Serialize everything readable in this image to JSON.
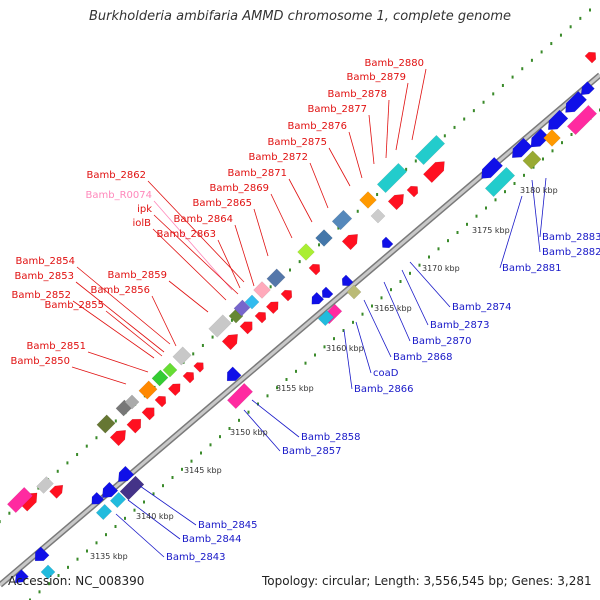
{
  "title": "Burkholderia ambifaria AMMD chromosome 1, complete genome",
  "accession": "Accession: NC_008390",
  "summary": "Topology: circular; Length: 3,556,545 bp; Genes: 3,281",
  "colors": {
    "backbone": "#9a9a9a",
    "tick_dot": "#3a8a2a",
    "upper_label": "#e01010",
    "upper_label_pink": "#ff88bb",
    "lower_label": "#1818c8",
    "forward_gene": "#ff1020",
    "reverse_gene": "#1010e8"
  },
  "scale_ticks": [
    {
      "label": "3135 kbp"
    },
    {
      "label": "3140 kbp"
    },
    {
      "label": "3145 kbp"
    },
    {
      "label": "3150 kbp"
    },
    {
      "label": "3155 kbp"
    },
    {
      "label": "3160 kbp"
    },
    {
      "label": "3165 kbp"
    },
    {
      "label": "3170 kbp"
    },
    {
      "label": "3175 kbp"
    },
    {
      "label": "3180 kbp"
    }
  ],
  "upper_labels": [
    {
      "text": "Bamb_2880"
    },
    {
      "text": "Bamb_2879"
    },
    {
      "text": "Bamb_2878"
    },
    {
      "text": "Bamb_2877"
    },
    {
      "text": "Bamb_2876"
    },
    {
      "text": "Bamb_2875"
    },
    {
      "text": "Bamb_2872"
    },
    {
      "text": "Bamb_2871"
    },
    {
      "text": "Bamb_2869"
    },
    {
      "text": "Bamb_2865"
    },
    {
      "text": "Bamb_2862"
    },
    {
      "text": "Bamb_R0074"
    },
    {
      "text": "ipk"
    },
    {
      "text": "Bamb_2864"
    },
    {
      "text": "iolB"
    },
    {
      "text": "Bamb_2863"
    },
    {
      "text": "Bamb_2859"
    },
    {
      "text": "Bamb_2854"
    },
    {
      "text": "Bamb_2853"
    },
    {
      "text": "Bamb_2856"
    },
    {
      "text": "Bamb_2852"
    },
    {
      "text": "Bamb_2855"
    },
    {
      "text": "Bamb_2851"
    },
    {
      "text": "Bamb_2850"
    }
  ],
  "lower_labels": [
    {
      "text": "Bamb_2883"
    },
    {
      "text": "Bamb_2882"
    },
    {
      "text": "Bamb_2881"
    },
    {
      "text": "Bamb_2874"
    },
    {
      "text": "Bamb_2873"
    },
    {
      "text": "Bamb_2870"
    },
    {
      "text": "Bamb_2868"
    },
    {
      "text": "coaD"
    },
    {
      "text": "Bamb_2866"
    },
    {
      "text": "Bamb_2858"
    },
    {
      "text": "Bamb_2857"
    },
    {
      "text": "Bamb_2845"
    },
    {
      "text": "Bamb_2844"
    },
    {
      "text": "Bamb_2843"
    }
  ]
}
